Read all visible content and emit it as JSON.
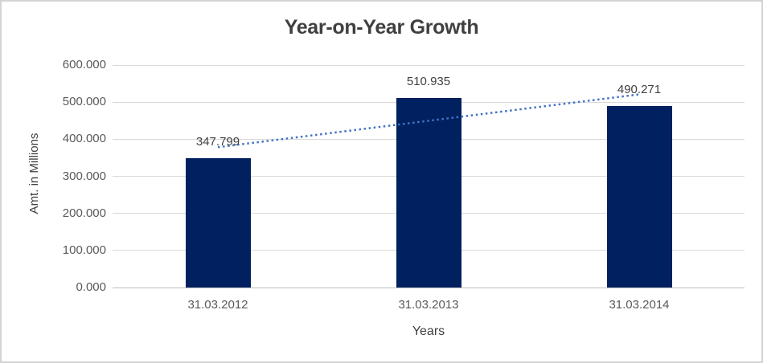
{
  "chart_data": {
    "type": "bar",
    "title": "Year-on-Year Growth",
    "xlabel": "Years",
    "ylabel": "Amt. in Millions",
    "categories": [
      "31.03.2012",
      "31.03.2013",
      "31.03.2014"
    ],
    "values": [
      347.799,
      510.935,
      490.271
    ],
    "data_labels": [
      "347.799",
      "510.935",
      "490.271"
    ],
    "ylim": [
      0,
      600
    ],
    "y_ticks": [
      {
        "value": 0,
        "label": "0.000"
      },
      {
        "value": 100,
        "label": "100.000"
      },
      {
        "value": 200,
        "label": "200.000"
      },
      {
        "value": 300,
        "label": "300.000"
      },
      {
        "value": 400,
        "label": "400.000"
      },
      {
        "value": 500,
        "label": "500.000"
      },
      {
        "value": 600,
        "label": "600.000"
      }
    ],
    "grid": true,
    "legend": "none",
    "trendline": {
      "type": "linear",
      "style": "dotted",
      "color": "#4472C4"
    },
    "colors": {
      "bar": "#002060",
      "gridline": "#D9D9D9",
      "axis_line": "#BFBFBF",
      "title_text": "#404040",
      "label_text": "#404040",
      "tick_text": "#595959",
      "border": "#D3D3D3"
    }
  }
}
